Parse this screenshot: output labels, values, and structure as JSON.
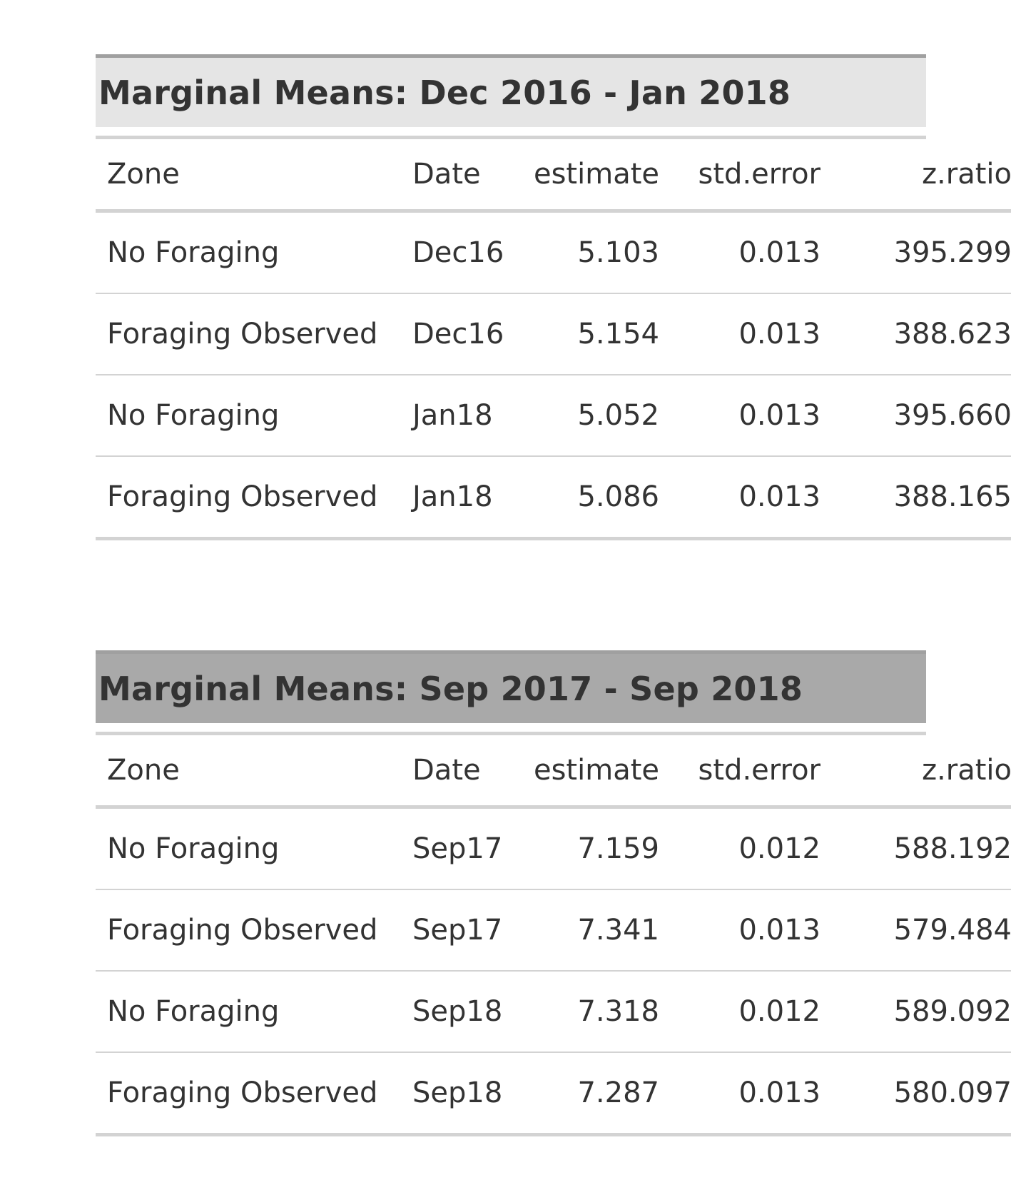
{
  "tables": [
    {
      "title": "Marginal Means: Dec 2016 - Jan 2018",
      "title_bg": "#e5e5e5",
      "columns": [
        "Zone",
        "Date",
        "estimate",
        "std.error",
        "z.ratio"
      ],
      "rows": [
        [
          "No Foraging",
          "Dec16",
          "5.103",
          "0.013",
          "395.299"
        ],
        [
          "Foraging Observed",
          "Dec16",
          "5.154",
          "0.013",
          "388.623"
        ],
        [
          "No Foraging",
          "Jan18",
          "5.052",
          "0.013",
          "395.660"
        ],
        [
          "Foraging Observed",
          "Jan18",
          "5.086",
          "0.013",
          "388.165"
        ]
      ]
    },
    {
      "title": "Marginal Means: Sep 2017 - Sep 2018",
      "title_bg": "#a9a9a9",
      "columns": [
        "Zone",
        "Date",
        "estimate",
        "std.error",
        "z.ratio"
      ],
      "rows": [
        [
          "No Foraging",
          "Sep17",
          "7.159",
          "0.012",
          "588.192"
        ],
        [
          "Foraging Observed",
          "Sep17",
          "7.341",
          "0.013",
          "579.484"
        ],
        [
          "No Foraging",
          "Sep18",
          "7.318",
          "0.012",
          "589.092"
        ],
        [
          "Foraging Observed",
          "Sep18",
          "7.287",
          "0.013",
          "580.097"
        ]
      ]
    }
  ]
}
